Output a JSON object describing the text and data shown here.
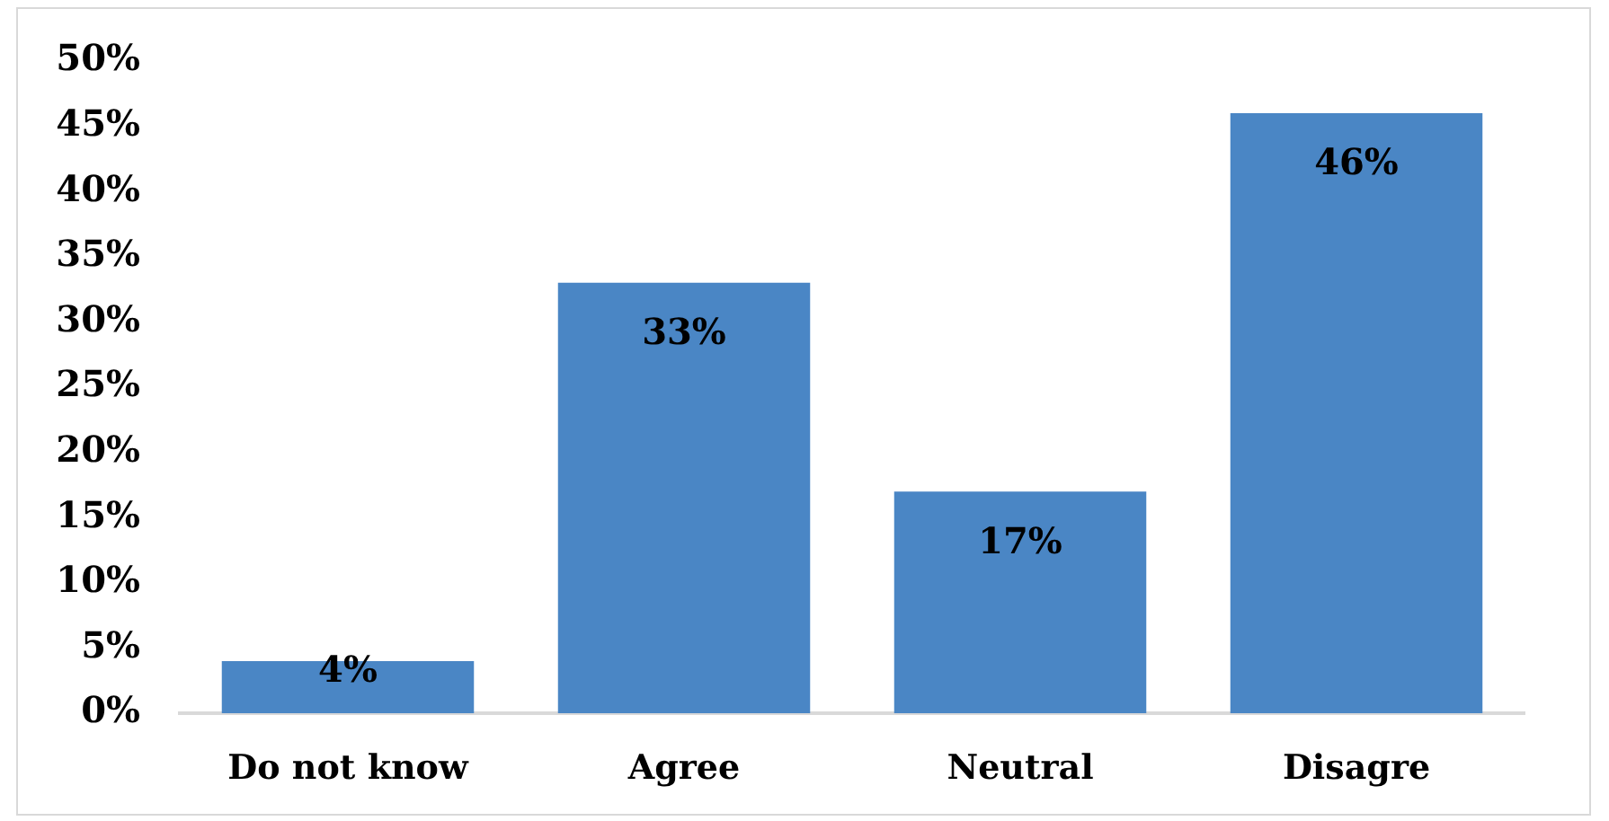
{
  "chart_data": {
    "type": "bar",
    "categories": [
      "Do not know",
      "Agree",
      "Neutral",
      "Disagre"
    ],
    "values": [
      4,
      33,
      17,
      46
    ],
    "color": "#4a86c5",
    "value_labels": [
      "4%",
      "33%",
      "17%",
      "46%"
    ],
    "ylim": [
      0,
      50
    ],
    "yticks": [
      {
        "value": 0,
        "label": "0%"
      },
      {
        "value": 5,
        "label": "5%"
      },
      {
        "value": 10,
        "label": "10%"
      },
      {
        "value": 15,
        "label": "15%"
      },
      {
        "value": 20,
        "label": "20%"
      },
      {
        "value": 25,
        "label": "25%"
      },
      {
        "value": 30,
        "label": "30%"
      },
      {
        "value": 35,
        "label": "35%"
      },
      {
        "value": 40,
        "label": "40%"
      },
      {
        "value": 45,
        "label": "45%"
      },
      {
        "value": 50,
        "label": "50%"
      }
    ]
  }
}
